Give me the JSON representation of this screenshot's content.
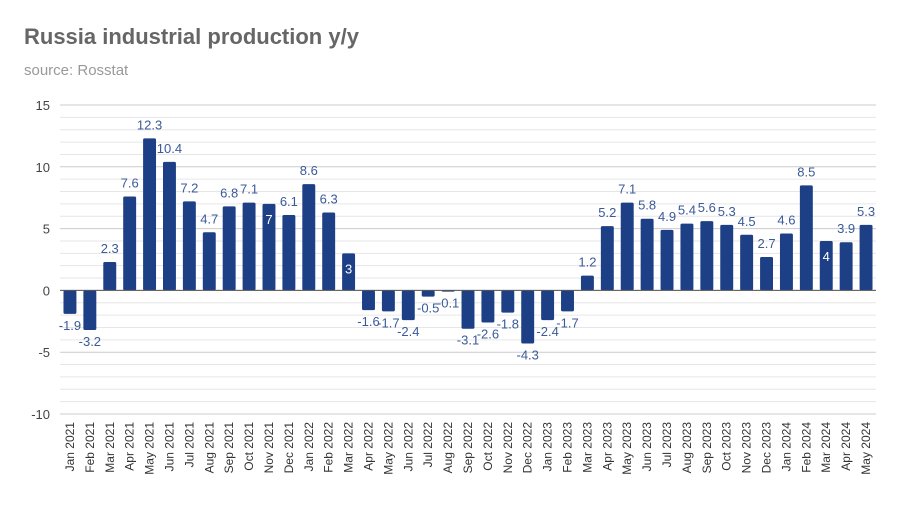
{
  "chart_data": {
    "type": "bar",
    "title": "Russia industrial production y/y",
    "subtitle": "source: Rosstat",
    "xlabel": "",
    "ylabel": "",
    "ylim": [
      -10,
      15
    ],
    "yticks": [
      "15",
      "10",
      "5",
      "0",
      "-5",
      "-10"
    ],
    "grid": true,
    "bar_color": "#1c3f85",
    "label_color": "#3a5a9a",
    "categories": [
      "Jan 2021",
      "Feb 2021",
      "Mar 2021",
      "Apr 2021",
      "May 2021",
      "Jun 2021",
      "Jul 2021",
      "Aug 2021",
      "Sep 2021",
      "Oct 2021",
      "Nov 2021",
      "Dec 2021",
      "Jan 2022",
      "Feb 2022",
      "Mar 2022",
      "Apr 2022",
      "May 2022",
      "Jun 2022",
      "Jul 2022",
      "Aug 2022",
      "Sep 2022",
      "Oct 2022",
      "Nov 2022",
      "Dec 2022",
      "Jan 2023",
      "Feb 2023",
      "Mar 2023",
      "Apr 2023",
      "May 2023",
      "Jun 2023",
      "Jul 2023",
      "Aug 2023",
      "Sep 2023",
      "Oct 2023",
      "Nov 2023",
      "Dec 2023",
      "Jan 2024",
      "Feb 2024",
      "Mar 2024",
      "Apr 2024",
      "May 2024"
    ],
    "values": [
      -1.9,
      -3.2,
      2.3,
      7.6,
      12.3,
      10.4,
      7.2,
      4.7,
      6.8,
      7.1,
      7,
      6.1,
      8.6,
      6.3,
      3,
      -1.6,
      -1.7,
      -2.4,
      -0.5,
      -0.1,
      -3.1,
      -2.6,
      -1.8,
      -4.3,
      -2.4,
      -1.7,
      1.2,
      5.2,
      7.1,
      5.8,
      4.9,
      5.4,
      5.6,
      5.3,
      4.5,
      2.7,
      4.6,
      8.5,
      4,
      3.9,
      5.3
    ]
  }
}
